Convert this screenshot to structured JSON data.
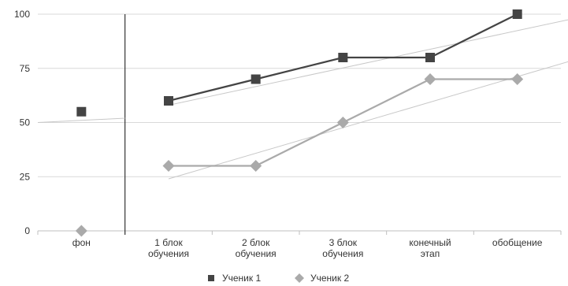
{
  "chart_data": {
    "type": "line",
    "categories": [
      [
        "фон"
      ],
      [
        "1 блок",
        "обучения"
      ],
      [
        "2 блок",
        "обучения"
      ],
      [
        "3 блок",
        "обучения"
      ],
      [
        "конечный",
        "этап"
      ],
      [
        "обобщение"
      ]
    ],
    "ylim": [
      0,
      100
    ],
    "yticks": [
      "0",
      "25",
      "50",
      "75",
      "100"
    ],
    "yticks_values": [
      0,
      25,
      50,
      75,
      100
    ],
    "grid": true,
    "legend_position": "bottom",
    "phase_divider_after_category": 0,
    "series": [
      {
        "name": "Ученик 1",
        "marker": "square",
        "color": "#444444",
        "values": [
          55,
          60,
          70,
          80,
          80,
          100
        ]
      },
      {
        "name": "Ученик 2",
        "marker": "diamond",
        "color": "#aaaaaa",
        "values": [
          0,
          30,
          30,
          50,
          70,
          70
        ]
      }
    ],
    "trendlines": [
      {
        "series": "Ученик 1",
        "from": [
          1,
          58
        ],
        "to": [
          6,
          101
        ]
      },
      {
        "series": "Ученик 2",
        "from": [
          1,
          24
        ],
        "to": [
          6,
          83
        ]
      }
    ],
    "baseline_segment": {
      "series": "Ученик 1",
      "from": [
        0,
        50
      ],
      "to": [
        0.5,
        52
      ]
    }
  }
}
